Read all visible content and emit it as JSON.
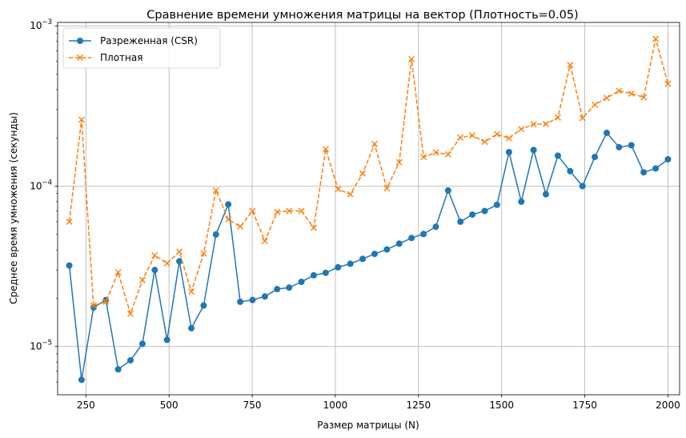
{
  "chart_data": {
    "type": "line",
    "title": "Сравнение времени умножения матрицы на вектор (Плотность=0.05)",
    "xlabel": "Размер матрицы (N)",
    "ylabel": "Среднее время умножения (секунды)",
    "yscale": "log",
    "xlim": [
      165,
      2035
    ],
    "ylim": [
      5e-06,
      0.00105
    ],
    "x_ticks": [
      250,
      500,
      750,
      1000,
      1250,
      1500,
      1750,
      2000
    ],
    "x_tick_labels": [
      "250",
      "500",
      "750",
      "1000",
      "1250",
      "1500",
      "1750",
      "2000"
    ],
    "y_ticks": [
      1e-05,
      0.0001,
      0.001
    ],
    "y_tick_labels": [
      {
        "base": "10",
        "exp": "−5"
      },
      {
        "base": "10",
        "exp": "−4"
      },
      {
        "base": "10",
        "exp": "−3"
      }
    ],
    "grid": true,
    "legend_position": "top-left",
    "x": [
      200,
      237,
      273,
      310,
      347,
      384,
      420,
      457,
      494,
      531,
      567,
      604,
      641,
      678,
      714,
      751,
      788,
      825,
      861,
      898,
      935,
      971,
      1008,
      1045,
      1082,
      1118,
      1155,
      1192,
      1229,
      1265,
      1302,
      1339,
      1376,
      1412,
      1449,
      1486,
      1522,
      1559,
      1596,
      1633,
      1669,
      1706,
      1743,
      1780,
      1816,
      1853,
      1890,
      1927,
      1963,
      2000
    ],
    "series": [
      {
        "name": "Разреженная (CSR)",
        "color": "#1f77b4",
        "linestyle": "solid",
        "marker": "circle",
        "values": [
          3.2e-05,
          6.2e-06,
          1.75e-05,
          1.95e-05,
          7.2e-06,
          8.2e-06,
          1.04e-05,
          3e-05,
          1.1e-05,
          3.4e-05,
          1.3e-05,
          1.8e-05,
          5e-05,
          7.7e-05,
          1.9e-05,
          1.95e-05,
          2.05e-05,
          2.28e-05,
          2.33e-05,
          2.53e-05,
          2.78e-05,
          2.88e-05,
          3.12e-05,
          3.28e-05,
          3.52e-05,
          3.78e-05,
          4.03e-05,
          4.38e-05,
          4.75e-05,
          5.03e-05,
          5.58e-05,
          9.4e-05,
          6e-05,
          6.65e-05,
          7e-05,
          7.65e-05,
          0.000163,
          8e-05,
          0.000168,
          8.9e-05,
          0.000155,
          0.000124,
          0.0001,
          0.000152,
          0.000215,
          0.000175,
          0.00018,
          0.000122,
          0.000129,
          0.000147
        ]
      },
      {
        "name": "Плотная",
        "color": "#ff7f0e",
        "linestyle": "dashed",
        "marker": "x",
        "values": [
          6e-05,
          0.00026,
          1.8e-05,
          1.9e-05,
          2.9e-05,
          1.6e-05,
          2.6e-05,
          3.7e-05,
          3.3e-05,
          3.9e-05,
          2.2e-05,
          3.8e-05,
          9.4e-05,
          6.2e-05,
          5.6e-05,
          7e-05,
          4.55e-05,
          6.9e-05,
          7e-05,
          7e-05,
          5.5e-05,
          0.00017,
          9.6e-05,
          8.9e-05,
          0.00012,
          0.000183,
          9.7e-05,
          0.000141,
          0.00062,
          0.000152,
          0.000162,
          0.000158,
          0.000201,
          0.000207,
          0.000189,
          0.000211,
          0.000199,
          0.000227,
          0.000243,
          0.000244,
          0.000268,
          0.00057,
          0.000266,
          0.000322,
          0.000355,
          0.000393,
          0.000378,
          0.000358,
          0.00083,
          0.000435
        ]
      }
    ]
  }
}
